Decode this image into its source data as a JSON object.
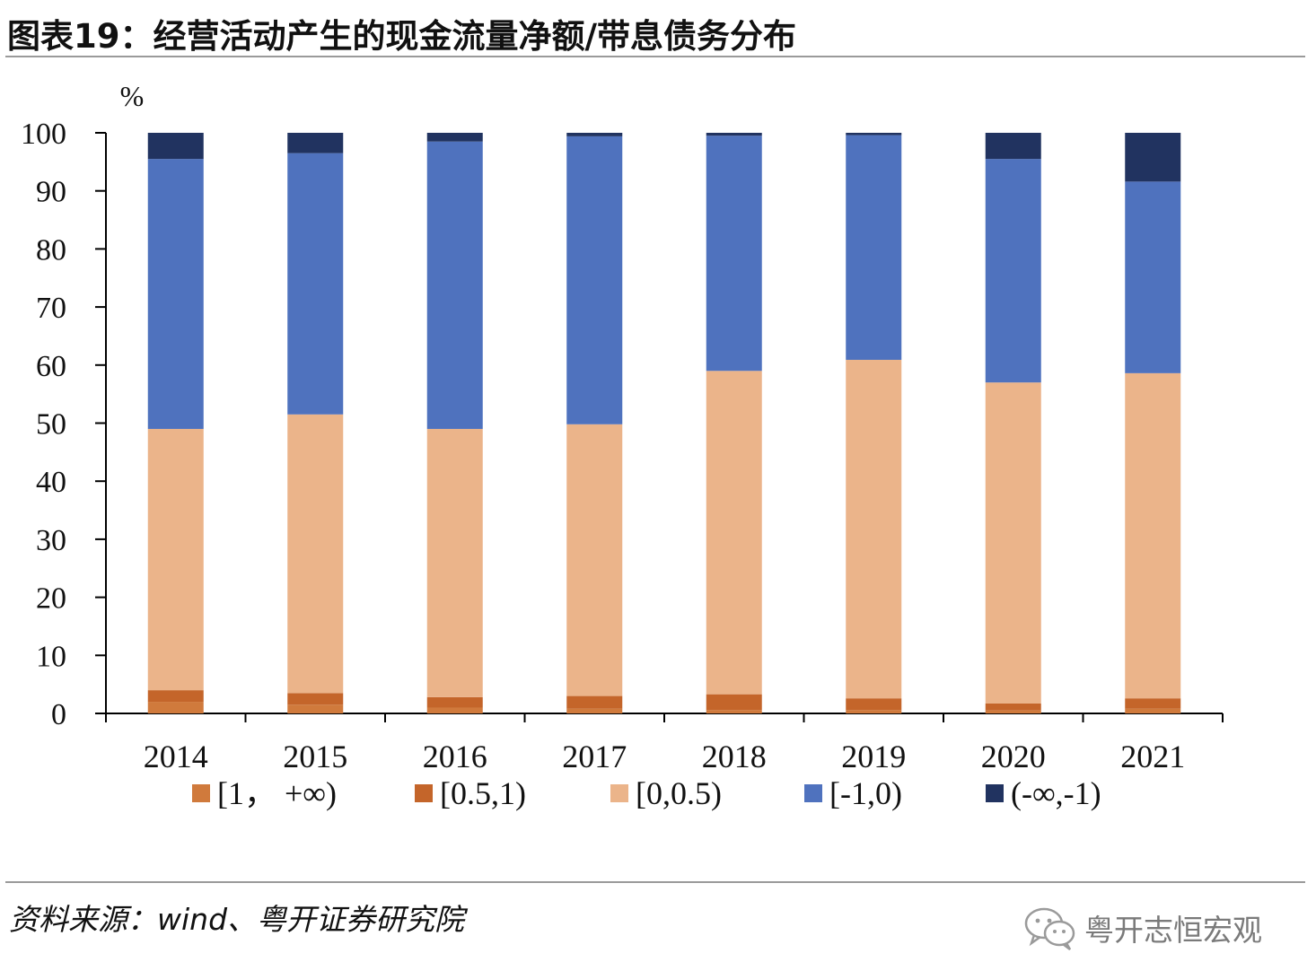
{
  "title": "图表19：经营活动产生的现金流量净额/带息债务分布",
  "source": "资料来源：wind、粤开证券研究院",
  "watermark": "粤开志恒宏观",
  "chart_data": {
    "type": "bar",
    "stacked": true,
    "title": "图表19：经营活动产生的现金流量净额/带息债务分布",
    "ylabel": "%",
    "xlabel": "",
    "ylim": [
      0,
      100
    ],
    "yticks": [
      "0",
      "10",
      "20",
      "30",
      "40",
      "50",
      "60",
      "70",
      "80",
      "90",
      "100"
    ],
    "categories": [
      "2014",
      "2015",
      "2016",
      "2017",
      "2018",
      "2019",
      "2020",
      "2021"
    ],
    "legend_position": "bottom",
    "series": [
      {
        "name": "[1， +∞)",
        "color": "#D07A3C",
        "values": [
          2.0,
          1.5,
          1.0,
          0.8,
          0.6,
          0.6,
          0.5,
          0.8
        ]
      },
      {
        "name": "[0.5,1)",
        "color": "#C4652A",
        "values": [
          2.0,
          2.0,
          1.8,
          2.2,
          2.7,
          2.0,
          1.2,
          1.8
        ]
      },
      {
        "name": "[0,0.5)",
        "color": "#EBB48A",
        "values": [
          45.0,
          48.0,
          46.2,
          46.8,
          55.7,
          58.3,
          55.3,
          56.0
        ]
      },
      {
        "name": "[-1,0)",
        "color": "#4F72BE",
        "values": [
          46.5,
          45.0,
          49.5,
          49.6,
          40.5,
          38.7,
          38.5,
          33.0
        ]
      },
      {
        "name": "(-∞,-1)",
        "color": "#213360",
        "values": [
          4.5,
          3.5,
          1.5,
          0.6,
          0.5,
          0.4,
          4.5,
          8.4
        ]
      }
    ]
  }
}
